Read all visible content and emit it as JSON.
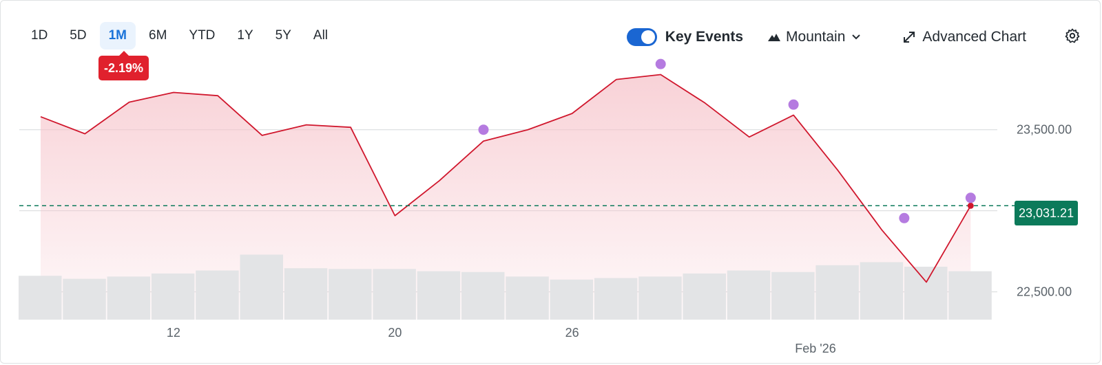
{
  "ranges": [
    "1D",
    "5D",
    "1M",
    "6M",
    "YTD",
    "1Y",
    "5Y",
    "All"
  ],
  "active_range": "1M",
  "change_badge": "-2.19%",
  "toolbar": {
    "key_events_label": "Key Events",
    "key_events_on": true,
    "chart_type_label": "Mountain",
    "advanced_label": "Advanced Chart"
  },
  "colors": {
    "line": "#d0172d",
    "area": "#f6c3ca",
    "volume": "#e3e4e6",
    "event": "#b57be0",
    "last_price_bg": "#0c7a5a",
    "active_range": "#1a73d9"
  },
  "chart_data": {
    "type": "area",
    "x_tick_labels": [
      {
        "label": "12",
        "index": 3
      },
      {
        "label": "20",
        "index": 8
      },
      {
        "label": "26",
        "index": 12
      }
    ],
    "month_label": {
      "label": "Feb '26",
      "index": 17.5
    },
    "y_ticks": [
      23500,
      23000,
      22500
    ],
    "y_tick_labels": [
      "23,500.00",
      "23,000.00",
      "22,500.00"
    ],
    "ylim": [
      22350,
      23910
    ],
    "values": [
      23580,
      23475,
      23670,
      23730,
      23710,
      23465,
      23530,
      23515,
      22970,
      23185,
      23430,
      23500,
      23600,
      23810,
      23840,
      23665,
      23455,
      23590,
      23250,
      22880,
      22560,
      23031
    ],
    "volume": [
      0.58,
      0.54,
      0.57,
      0.61,
      0.65,
      0.86,
      0.68,
      0.67,
      0.67,
      0.64,
      0.63,
      0.57,
      0.53,
      0.55,
      0.57,
      0.61,
      0.65,
      0.63,
      0.72,
      0.76,
      0.7,
      0.64
    ],
    "key_events": [
      {
        "index": 10,
        "value": 23500
      },
      {
        "index": 14,
        "value": 23905
      },
      {
        "index": 17,
        "value": 23655
      },
      {
        "index": 19.5,
        "value": 22955
      },
      {
        "index": 21,
        "value": 23080
      }
    ],
    "last_price": 23031.21,
    "last_price_label": "23,031.21",
    "grid": true
  }
}
